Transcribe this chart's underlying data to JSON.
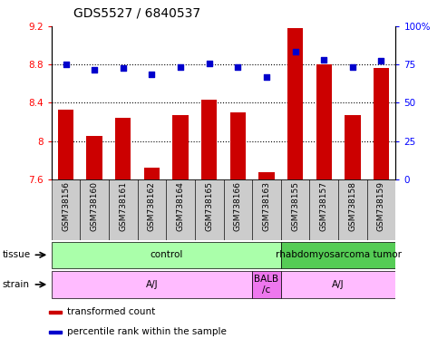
{
  "title": "GDS5527 / 6840537",
  "samples": [
    "GSM738156",
    "GSM738160",
    "GSM738161",
    "GSM738162",
    "GSM738164",
    "GSM738165",
    "GSM738166",
    "GSM738163",
    "GSM738155",
    "GSM738157",
    "GSM738158",
    "GSM738159"
  ],
  "red_values": [
    8.33,
    8.05,
    8.24,
    7.72,
    8.27,
    8.43,
    8.3,
    7.67,
    9.18,
    8.8,
    8.27,
    8.76
  ],
  "blue_values": [
    75.0,
    71.5,
    72.5,
    68.5,
    73.5,
    75.5,
    73.5,
    67.0,
    83.5,
    78.0,
    73.0,
    77.5
  ],
  "ylim_left": [
    7.6,
    9.2
  ],
  "ylim_right": [
    0,
    100
  ],
  "yticks_left": [
    7.6,
    8.0,
    8.4,
    8.8,
    9.2
  ],
  "yticks_right": [
    0,
    25,
    50,
    75,
    100
  ],
  "ytick_labels_left": [
    "7.6",
    "8",
    "8.4",
    "8.8",
    "9.2"
  ],
  "ytick_labels_right": [
    "0",
    "25",
    "50",
    "75",
    "100%"
  ],
  "hlines": [
    8.0,
    8.4,
    8.8
  ],
  "bar_color": "#cc0000",
  "dot_color": "#0000cc",
  "tissue_groups": [
    {
      "label": "control",
      "start": 0,
      "end": 8,
      "color": "#aaffaa"
    },
    {
      "label": "rhabdomyosarcoma tumor",
      "start": 8,
      "end": 12,
      "color": "#55cc55"
    }
  ],
  "strain_groups": [
    {
      "label": "A/J",
      "start": 0,
      "end": 7,
      "color": "#ffbbff"
    },
    {
      "label": "BALB\n/c",
      "start": 7,
      "end": 8,
      "color": "#ee77ee"
    },
    {
      "label": "A/J",
      "start": 8,
      "end": 12,
      "color": "#ffbbff"
    }
  ],
  "legend_items": [
    {
      "color": "#cc0000",
      "label": "transformed count"
    },
    {
      "color": "#0000cc",
      "label": "percentile rank within the sample"
    }
  ],
  "title_fontsize": 10,
  "tick_fontsize": 7.5,
  "sample_fontsize": 6.5,
  "row_fontsize": 7.5,
  "legend_fontsize": 7.5
}
